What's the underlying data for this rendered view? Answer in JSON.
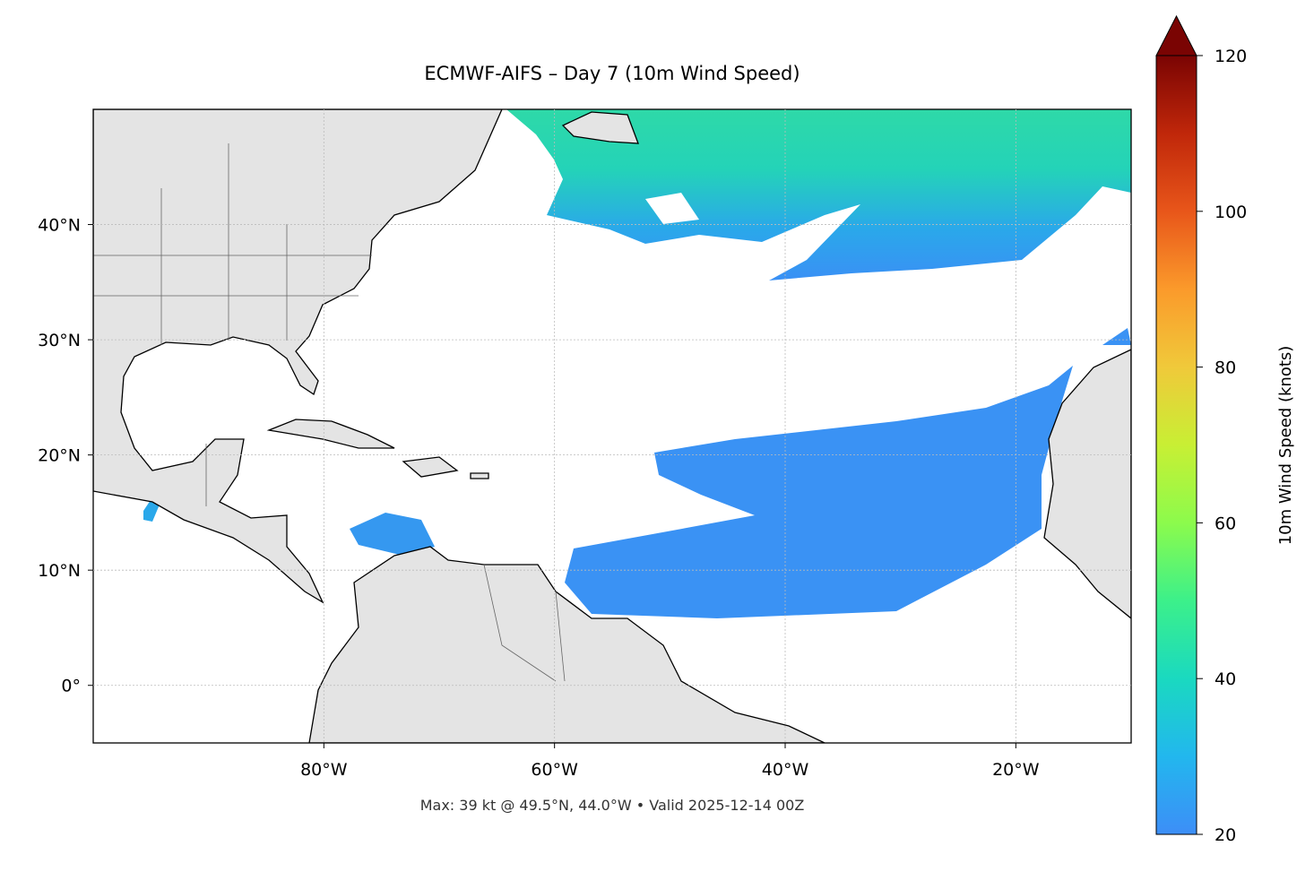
{
  "map": {
    "title": "ECMWF-AIFS – Day 7 (10m Wind Speed)",
    "footnote": "Max: 39 kt @ 49.5°N, 44.0°W • Valid 2025-12-14 00Z",
    "xlim": [
      -100,
      -10
    ],
    "ylim": [
      -5,
      50
    ],
    "xticks": [
      {
        "value": -80,
        "label": "80°W"
      },
      {
        "value": -60,
        "label": "60°W"
      },
      {
        "value": -40,
        "label": "40°W"
      },
      {
        "value": -20,
        "label": "20°W"
      }
    ],
    "yticks": [
      {
        "value": 0,
        "label": "0°"
      },
      {
        "value": 10,
        "label": "10°N"
      },
      {
        "value": 20,
        "label": "20°N"
      },
      {
        "value": 30,
        "label": "30°N"
      },
      {
        "value": 40,
        "label": "40°N"
      }
    ],
    "grid": true,
    "colorbar": {
      "label": "10m Wind Speed (knots)",
      "lim": [
        20,
        120
      ],
      "ticks": [
        20,
        40,
        60,
        80,
        100,
        120
      ],
      "extend": "max"
    }
  }
}
